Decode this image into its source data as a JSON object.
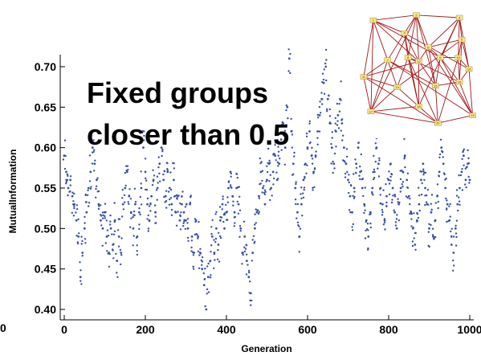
{
  "chart_data": {
    "type": "scatter",
    "xlabel": "Generation",
    "ylabel": "MutualInformation",
    "xlim": [
      0,
      1000
    ],
    "ylim": [
      0.4,
      0.7
    ],
    "x_ticks": [
      0,
      200,
      400,
      600,
      800,
      1000
    ],
    "x_tick_labels": [
      "0",
      "200",
      "400",
      "600",
      "800",
      "1000"
    ],
    "y_ticks": [
      0.4,
      0.45,
      0.5,
      0.55,
      0.6,
      0.65,
      0.7
    ],
    "y_tick_labels": [
      "0.40",
      "0.45",
      "0.50",
      "0.55",
      "0.60",
      "0.65",
      "0.70"
    ],
    "stray_left_label": "0",
    "annotation": [
      "Fixed groups",
      "closer than 0.5"
    ],
    "point_color": "#3a4fa8",
    "network_inset": {
      "node_labels": [
        "1",
        "2",
        "3",
        "4",
        "5",
        "6",
        "7",
        "8",
        "9",
        "10",
        "11",
        "12",
        "13",
        "14",
        "15",
        "16",
        "17",
        "18",
        "19",
        "20"
      ],
      "edge_color": "#a11818",
      "node_color": "#f5e88a"
    },
    "series": [
      {
        "x": [
          0,
          5,
          10,
          15,
          20,
          25,
          30,
          35,
          40,
          45,
          50,
          55,
          60,
          65,
          70,
          75,
          80,
          85,
          90,
          95,
          100,
          105,
          110,
          115,
          120,
          125,
          130,
          135,
          140,
          145,
          150,
          155,
          160,
          165,
          170,
          175,
          180,
          185,
          190,
          195,
          200,
          205,
          210,
          215,
          220,
          225,
          230,
          235,
          240,
          245,
          250,
          255,
          260,
          265,
          270,
          275,
          280,
          285,
          290,
          295,
          300,
          305,
          310,
          315,
          320,
          325,
          330,
          335,
          340,
          345,
          350,
          355,
          360,
          365,
          370,
          375,
          380,
          385,
          390,
          395,
          400,
          405,
          410,
          415,
          420,
          425,
          430,
          435,
          440,
          445,
          450,
          455,
          460,
          465,
          470,
          475,
          480,
          485,
          490,
          495,
          500,
          505,
          510,
          515,
          520,
          525,
          530,
          535,
          540,
          545,
          550,
          555,
          560,
          565,
          570,
          575,
          580,
          585,
          590,
          595,
          600,
          605,
          610,
          615,
          620,
          625,
          630,
          635,
          640,
          645,
          650,
          655,
          660,
          665,
          670,
          675,
          680,
          685,
          690,
          695,
          700,
          705,
          710,
          715,
          720,
          725,
          730,
          735,
          740,
          745,
          750,
          755,
          760,
          765,
          770,
          775,
          780,
          785,
          790,
          795,
          800,
          805,
          810,
          815,
          820,
          825,
          830,
          835,
          840,
          845,
          850,
          855,
          860,
          865,
          870,
          875,
          880,
          885,
          890,
          895,
          900,
          905,
          910,
          915,
          920,
          925,
          930,
          935,
          940,
          945,
          950,
          955,
          960,
          965,
          970,
          975,
          980,
          985,
          990,
          995,
          1000
        ],
        "y": [
          0.59,
          0.57,
          0.55,
          0.56,
          0.54,
          0.53,
          0.51,
          0.49,
          0.44,
          0.47,
          0.5,
          0.52,
          0.55,
          0.57,
          0.6,
          0.58,
          0.56,
          0.53,
          0.51,
          0.5,
          0.52,
          0.49,
          0.47,
          0.5,
          0.48,
          0.51,
          0.46,
          0.49,
          0.47,
          0.53,
          0.55,
          0.57,
          0.54,
          0.52,
          0.5,
          0.53,
          0.49,
          0.52,
          0.55,
          0.6,
          0.57,
          0.53,
          0.51,
          0.54,
          0.56,
          0.52,
          0.55,
          0.58,
          0.6,
          0.56,
          0.54,
          0.57,
          0.55,
          0.53,
          0.56,
          0.52,
          0.54,
          0.51,
          0.53,
          0.52,
          0.51,
          0.5,
          0.53,
          0.49,
          0.47,
          0.51,
          0.49,
          0.47,
          0.45,
          0.43,
          0.4,
          0.44,
          0.46,
          0.49,
          0.47,
          0.5,
          0.48,
          0.51,
          0.53,
          0.5,
          0.52,
          0.55,
          0.57,
          0.54,
          0.52,
          0.55,
          0.53,
          0.5,
          0.47,
          0.49,
          0.46,
          0.44,
          0.42,
          0.47,
          0.5,
          0.52,
          0.54,
          0.57,
          0.55,
          0.53,
          0.56,
          0.58,
          0.55,
          0.57,
          0.59,
          0.56,
          0.58,
          0.61,
          0.63,
          0.6,
          0.65,
          0.71,
          0.62,
          0.58,
          0.55,
          0.52,
          0.49,
          0.53,
          0.56,
          0.58,
          0.6,
          0.62,
          0.59,
          0.57,
          0.59,
          0.62,
          0.64,
          0.66,
          0.68,
          0.7,
          0.66,
          0.63,
          0.6,
          0.58,
          0.62,
          0.64,
          0.66,
          0.63,
          0.6,
          0.58,
          0.56,
          0.54,
          0.52,
          0.55,
          0.58,
          0.6,
          0.57,
          0.55,
          0.53,
          0.51,
          0.49,
          0.52,
          0.55,
          0.57,
          0.6,
          0.58,
          0.55,
          0.53,
          0.51,
          0.54,
          0.56,
          0.58,
          0.55,
          0.52,
          0.5,
          0.53,
          0.55,
          0.57,
          0.59,
          0.56,
          0.54,
          0.52,
          0.5,
          0.48,
          0.51,
          0.53,
          0.56,
          0.58,
          0.55,
          0.53,
          0.5,
          0.52,
          0.49,
          0.51,
          0.54,
          0.57,
          0.6,
          0.58,
          0.55,
          0.53,
          0.51,
          0.48,
          0.47,
          0.5,
          0.53,
          0.55,
          0.57,
          0.59,
          0.56,
          0.58,
          0.56
        ]
      }
    ]
  }
}
